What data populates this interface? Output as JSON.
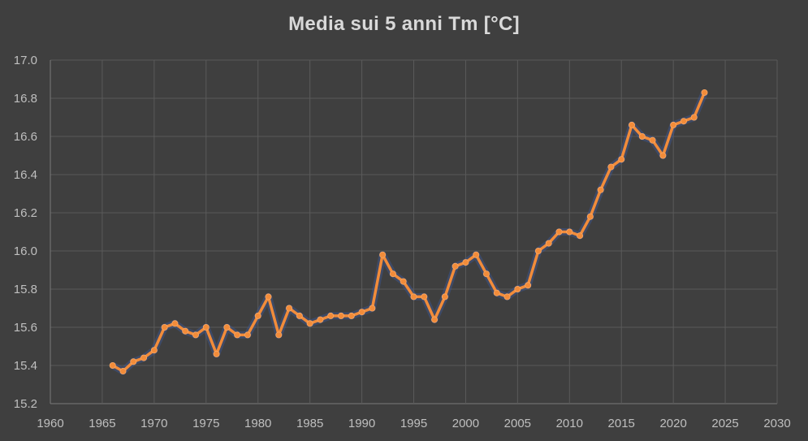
{
  "chart_data": {
    "type": "line",
    "title": "Media sui 5 anni Tm [°C]",
    "xlabel": "",
    "ylabel": "",
    "xlim": [
      1960,
      2030
    ],
    "ylim": [
      15.2,
      17.0
    ],
    "x_ticks": [
      1960,
      1965,
      1970,
      1975,
      1980,
      1985,
      1990,
      1995,
      2000,
      2005,
      2010,
      2015,
      2020,
      2025,
      2030
    ],
    "y_ticks": [
      "15.2",
      "15.4",
      "15.6",
      "15.8",
      "16.0",
      "16.2",
      "16.4",
      "16.6",
      "16.8",
      "17.0"
    ],
    "grid": true,
    "series": [
      {
        "name": "Media sui 5 anni Tm",
        "color": "#f28c3a",
        "x": [
          1966,
          1967,
          1968,
          1969,
          1970,
          1971,
          1972,
          1973,
          1974,
          1975,
          1976,
          1977,
          1978,
          1979,
          1980,
          1981,
          1982,
          1983,
          1984,
          1985,
          1986,
          1987,
          1988,
          1989,
          1990,
          1991,
          1992,
          1993,
          1994,
          1995,
          1996,
          1997,
          1998,
          1999,
          2000,
          2001,
          2002,
          2003,
          2004,
          2005,
          2006,
          2007,
          2008,
          2009,
          2010,
          2011,
          2012,
          2013,
          2014,
          2015,
          2016,
          2017,
          2018,
          2019,
          2020,
          2021,
          2022,
          2023
        ],
        "y": [
          15.4,
          15.37,
          15.42,
          15.44,
          15.48,
          15.6,
          15.62,
          15.58,
          15.56,
          15.6,
          15.46,
          15.6,
          15.56,
          15.56,
          15.66,
          15.76,
          15.56,
          15.7,
          15.66,
          15.62,
          15.64,
          15.66,
          15.66,
          15.66,
          15.68,
          15.7,
          15.98,
          15.88,
          15.84,
          15.76,
          15.76,
          15.64,
          15.76,
          15.92,
          15.94,
          15.98,
          15.88,
          15.78,
          15.76,
          15.8,
          15.82,
          16.0,
          16.04,
          16.1,
          16.1,
          16.08,
          16.18,
          16.32,
          16.44,
          16.48,
          16.66,
          16.6,
          16.58,
          16.5,
          16.66,
          16.68,
          16.7,
          16.83
        ]
      }
    ]
  }
}
